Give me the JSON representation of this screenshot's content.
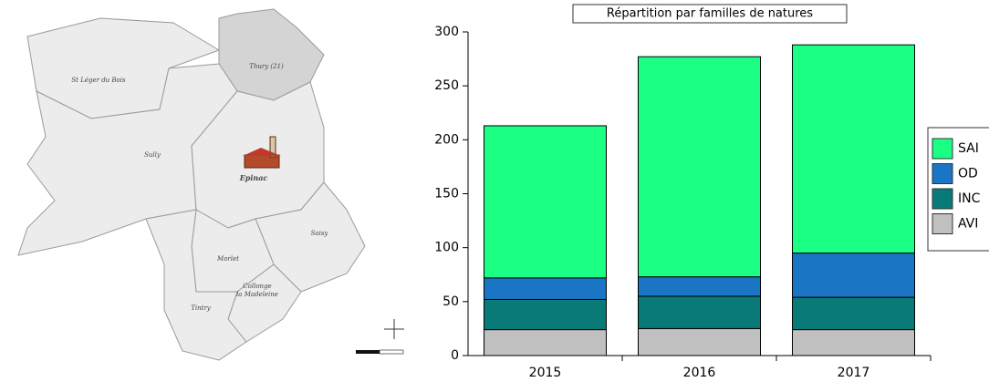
{
  "map": {
    "labels": [
      "St Léger du Bois",
      "Thury (21)",
      "Sully",
      "Epinac",
      "Saisy",
      "Morlet",
      "Collonge",
      "la Madeleine",
      "Tintry"
    ]
  },
  "chart_data": {
    "type": "stacked-bar",
    "title": "Répartition par familles de natures",
    "categories": [
      "2015",
      "2016",
      "2017"
    ],
    "series": [
      {
        "name": "AVI",
        "color": "#c0c0c0",
        "values": [
          24,
          25,
          24
        ]
      },
      {
        "name": "INC",
        "color": "#0a7a78",
        "values": [
          28,
          30,
          30
        ]
      },
      {
        "name": "OD",
        "color": "#1a75c4",
        "values": [
          20,
          18,
          41
        ]
      },
      {
        "name": "SAI",
        "color": "#1aff84",
        "values": [
          141,
          204,
          193
        ]
      }
    ],
    "ylim": [
      0,
      300
    ],
    "yticks": [
      0,
      50,
      100,
      150,
      200,
      250,
      300
    ]
  }
}
